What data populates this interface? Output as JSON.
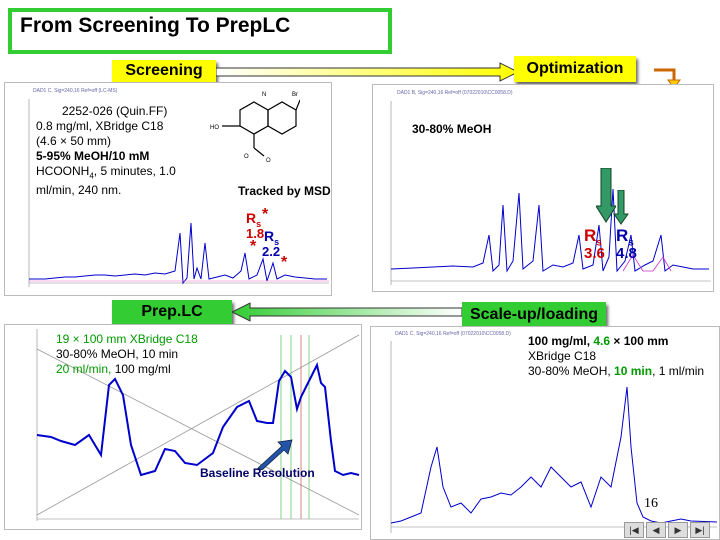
{
  "title": "From Screening To PrepLC",
  "labels": {
    "screening": "Screening",
    "optimization": "Optimization",
    "preplc": "Prep.LC",
    "scaleup": "Scale-up/loading"
  },
  "screening_conditions": {
    "line1": "2252-026 (Quin.FF)",
    "line2": "0.8 mg/ml, XBridge C18",
    "line3": "(4.6 × 50 mm)",
    "line4": "5-95% MeOH/10 mM",
    "line5_pre": "HCOONH",
    "line5_sub": "4",
    "line5_post": ", 5 minutes, 1.0",
    "line6": "ml/min, 240 nm."
  },
  "tracked_by_msd": "Tracked by MSD",
  "screen_marks": {
    "star1": "*",
    "star2": "*",
    "star3": "*",
    "rs1_value": "1.8",
    "rs2_value": "2.2",
    "rs_letter": "R",
    "rs_sub": "s"
  },
  "optimization": {
    "gradient": "30-80% MeOH",
    "rs_letter": "R",
    "rs_sub": "s",
    "rs1_value": "3.6",
    "rs2_value": "4.8"
  },
  "prep": {
    "line1": "19 × 100 mm XBridge C18",
    "line2": "30-80% MeOH, 10 min",
    "line3_green": "20 ml/min,",
    "line3_rest": " 100 mg/ml"
  },
  "baseline_resolution": "Baseline Resolution",
  "scaleup": {
    "line1_pre": "100 mg/ml, ",
    "line1_green": "4.6",
    "line1_post": " × 100 mm",
    "line2": "XBridge C18",
    "line3_pre": "30-80% MeOH, ",
    "line3_green": "10 min",
    "line3_post": ", 1 ml/min"
  },
  "page_number": "16",
  "colors": {
    "title_border": "#33cc33",
    "yellow_label": "#ffff00",
    "green_label": "#33cc33",
    "chromatogram": "#0000cc",
    "rs_red": "#cc0000",
    "rs_blue": "#0000aa",
    "green_text": "#009900"
  },
  "icons": [
    "return-arrow-icon",
    "nav-first-icon",
    "nav-prev-icon",
    "nav-next-icon",
    "nav-last-icon"
  ]
}
